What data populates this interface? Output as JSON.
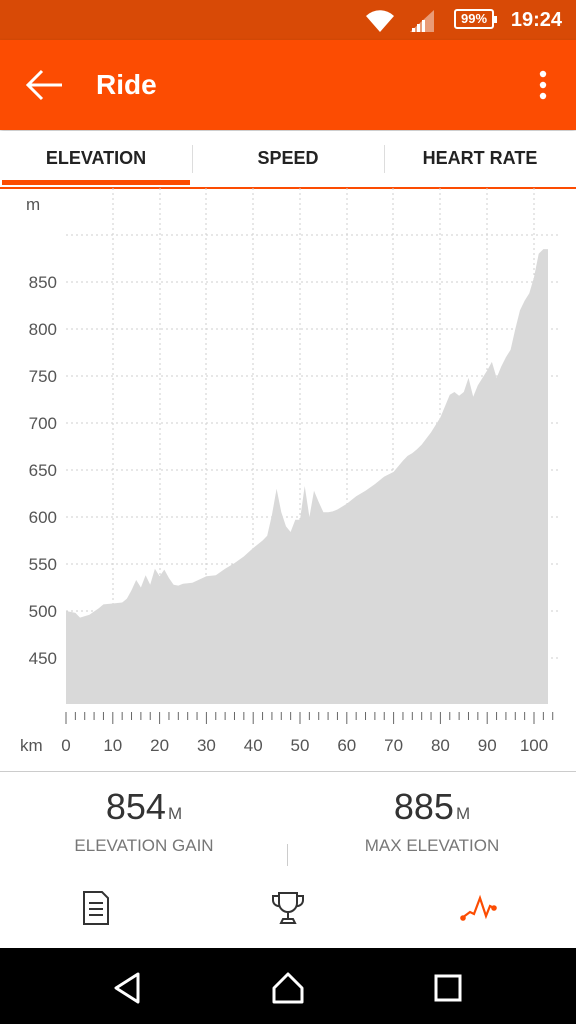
{
  "status": {
    "battery": "99%",
    "time": "19:24",
    "icons": [
      "wifi-icon",
      "signal-icon",
      "battery-icon"
    ]
  },
  "appbar": {
    "title": "Ride",
    "icons": [
      "back-arrow-icon",
      "more-vert-icon"
    ]
  },
  "tabs": [
    {
      "label": "ELEVATION",
      "active": true
    },
    {
      "label": "SPEED",
      "active": false
    },
    {
      "label": "HEART RATE",
      "active": false
    }
  ],
  "colors": {
    "accent": "#fc4c02",
    "statusbar": "#d84a06",
    "area": "#d9d9d9"
  },
  "chart_data": {
    "type": "area",
    "ylabel": "m",
    "xlabel": "km",
    "ylim": [
      400,
      900
    ],
    "xlim": [
      0,
      104
    ],
    "yticks": [
      450,
      500,
      550,
      600,
      650,
      700,
      750,
      800,
      850
    ],
    "xticks": [
      0,
      10,
      20,
      30,
      40,
      50,
      60,
      70,
      80,
      90,
      100
    ],
    "grid": true,
    "x": [
      0,
      2,
      3,
      5,
      7,
      8,
      10,
      12,
      13,
      14,
      15,
      16,
      17,
      18,
      19,
      20,
      21,
      22,
      23,
      24,
      25,
      27,
      30,
      32,
      34,
      36,
      38,
      40,
      42,
      43,
      44,
      45,
      46,
      47,
      48,
      49,
      50,
      51,
      52,
      53,
      54,
      55,
      56,
      57,
      58,
      60,
      62,
      64,
      66,
      68,
      70,
      72,
      73,
      74,
      75,
      76,
      78,
      80,
      82,
      83,
      84,
      85,
      86,
      87,
      88,
      89,
      90,
      91,
      92,
      93,
      94,
      95,
      96,
      97,
      98,
      99,
      100,
      101,
      102,
      103
    ],
    "y": [
      500,
      498,
      493,
      496,
      503,
      507,
      508,
      509,
      513,
      522,
      533,
      525,
      538,
      528,
      545,
      537,
      544,
      535,
      528,
      527,
      529,
      530,
      537,
      538,
      545,
      551,
      558,
      567,
      575,
      580,
      602,
      630,
      605,
      590,
      584,
      597,
      597,
      633,
      600,
      628,
      616,
      605,
      605,
      606,
      608,
      614,
      622,
      628,
      635,
      643,
      648,
      660,
      665,
      668,
      672,
      677,
      690,
      706,
      730,
      733,
      729,
      733,
      748,
      728,
      740,
      748,
      756,
      765,
      748,
      760,
      770,
      778,
      800,
      820,
      830,
      838,
      855,
      880,
      885,
      885
    ]
  },
  "stats": [
    {
      "value": "854",
      "unit": "M",
      "label": "ELEVATION GAIN"
    },
    {
      "value": "885",
      "unit": "M",
      "label": "MAX ELEVATION"
    }
  ],
  "bottom_nav": [
    "overview-icon",
    "trophy-icon",
    "analysis-icon"
  ],
  "system_nav": [
    "back-triangle-icon",
    "home-icon",
    "recents-icon"
  ]
}
